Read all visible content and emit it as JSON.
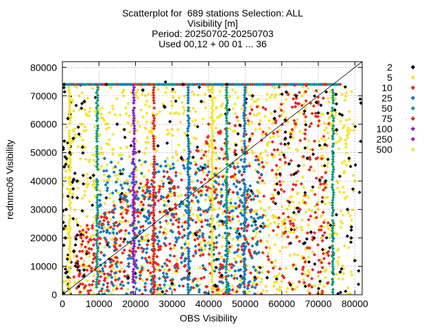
{
  "title_lines": [
    "Scatterplot for  689 stations Selection: ALL",
    "Visibility [m]",
    "Period: 20250702-20250703",
    "Used 00,12 + 00 01 ... 36"
  ],
  "chart_data": {
    "type": "scatter",
    "title": "Scatterplot for  689 stations Selection: ALL",
    "subtitle": "Visibility [m] | Period: 20250702-20250703 | Used 00,12 + 00 01 ... 36",
    "xlabel": "OBS Visibility",
    "ylabel": "rednmc06 Visibility",
    "xlim": [
      0,
      82000
    ],
    "ylim": [
      0,
      82000
    ],
    "x_ticks": [
      0,
      10000,
      20000,
      30000,
      40000,
      50000,
      60000,
      70000,
      80000
    ],
    "y_ticks": [
      0,
      10000,
      20000,
      30000,
      40000,
      50000,
      60000,
      70000,
      80000
    ],
    "grid": true,
    "diagonal_line": true,
    "legend_position": "right",
    "series": [
      {
        "name": "2",
        "color": "#000000",
        "density": 0.1,
        "points": [
          [
            500,
            74000
          ],
          [
            1500,
            62000
          ],
          [
            3000,
            55000
          ],
          [
            6000,
            68000
          ],
          [
            8500,
            42000
          ],
          [
            12000,
            74000
          ],
          [
            15000,
            60000
          ],
          [
            22000,
            72000
          ],
          [
            28000,
            66000
          ],
          [
            33000,
            74000
          ],
          [
            38000,
            68000
          ],
          [
            45000,
            74000
          ],
          [
            52000,
            70000
          ],
          [
            58000,
            62000
          ],
          [
            61000,
            55000
          ],
          [
            64000,
            70000
          ],
          [
            67000,
            48000
          ],
          [
            70000,
            64000
          ],
          [
            72000,
            40000
          ],
          [
            75000,
            58000
          ],
          [
            78000,
            30000
          ],
          [
            80000,
            12000
          ],
          [
            79000,
            20000
          ],
          [
            76000,
            8000
          ],
          [
            68000,
            22000
          ],
          [
            66000,
            18000
          ],
          [
            56000,
            6000
          ],
          [
            42000,
            3000
          ],
          [
            30000,
            4000
          ],
          [
            18000,
            6000
          ],
          [
            1000,
            30000
          ],
          [
            500,
            45000
          ],
          [
            2000,
            50000
          ],
          [
            4000,
            40000
          ],
          [
            800,
            20000
          ],
          [
            1200,
            8000
          ],
          [
            300,
            500
          ]
        ]
      },
      {
        "name": "5",
        "color": "#f5e431",
        "density": 0.55,
        "points": [
          [
            2000,
            36000
          ],
          [
            5000,
            60000
          ],
          [
            10000,
            65000
          ],
          [
            20000,
            70000
          ],
          [
            40000,
            72000
          ],
          [
            60000,
            50000
          ],
          [
            70000,
            30000
          ],
          [
            80000,
            40000
          ]
        ]
      },
      {
        "name": "10",
        "color": "#e8261c",
        "density": 0.35,
        "points": [
          [
            10000,
            20000
          ],
          [
            30000,
            40000
          ],
          [
            40000,
            60000
          ],
          [
            55000,
            45000
          ],
          [
            65000,
            30000
          ],
          [
            72000,
            74000
          ]
        ]
      },
      {
        "name": "25",
        "color": "#0b7bbf",
        "density": 0.22,
        "points": [
          [
            20000,
            20000
          ],
          [
            40000,
            30000
          ],
          [
            48000,
            45000
          ],
          [
            50000,
            30000
          ],
          [
            74000,
            20000
          ]
        ]
      },
      {
        "name": "50",
        "color": "#0e9a81",
        "density": 0.05,
        "points": [
          [
            9500,
            40000
          ],
          [
            19500,
            20000
          ],
          [
            49500,
            50000
          ],
          [
            74000,
            15000
          ]
        ]
      },
      {
        "name": "75",
        "color": "#dc2a1c",
        "density": 0.05,
        "points": [
          [
            30000,
            30000
          ],
          [
            50000,
            20000
          ]
        ]
      },
      {
        "name": "100",
        "color": "#8a1ad6",
        "density": 0.02,
        "points": [
          [
            20000,
            50000
          ],
          [
            20000,
            10000
          ]
        ]
      },
      {
        "name": "250",
        "color": "#9b1dc9",
        "density": 0.01,
        "points": [
          [
            19800,
            30000
          ]
        ]
      },
      {
        "name": "500",
        "color": "#f0e442",
        "density": 0.01,
        "points": [
          [
            40000,
            40000
          ]
        ]
      }
    ]
  }
}
